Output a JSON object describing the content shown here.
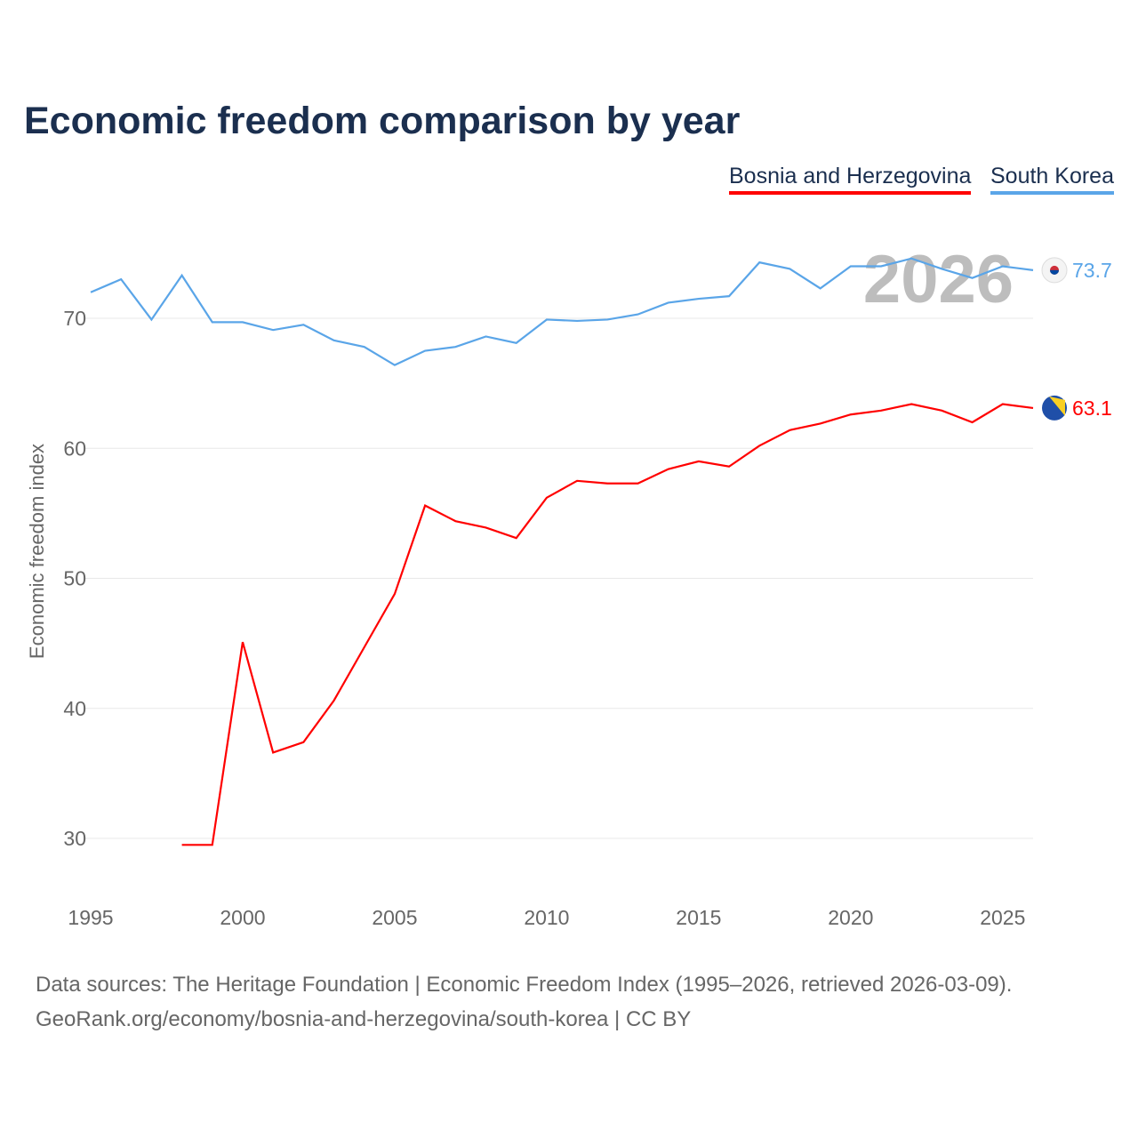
{
  "chart_data": {
    "type": "line",
    "title": "Economic freedom comparison by year",
    "ylabel": "Economic freedom index",
    "xlabel": "",
    "xlim": [
      1995,
      2026
    ],
    "ylim": [
      25.5,
      78
    ],
    "x_ticks": [
      1995,
      2000,
      2005,
      2010,
      2015,
      2020,
      2025
    ],
    "y_ticks": [
      30,
      40,
      50,
      60,
      70
    ],
    "grid": true,
    "legend_placement": "top-right",
    "year_watermark": "2026",
    "series": [
      {
        "name": "Bosnia and Herzegovina",
        "color": "#ff0000",
        "end_label": "63.1",
        "flag": "bosnia-flag",
        "x": [
          1998,
          1999,
          2000,
          2001,
          2002,
          2003,
          2004,
          2005,
          2006,
          2007,
          2008,
          2009,
          2010,
          2011,
          2012,
          2013,
          2014,
          2015,
          2016,
          2017,
          2018,
          2019,
          2020,
          2021,
          2022,
          2023,
          2024,
          2025,
          2026
        ],
        "values": [
          29.5,
          29.5,
          45.1,
          36.6,
          37.4,
          40.6,
          44.7,
          48.8,
          55.6,
          54.4,
          53.9,
          53.1,
          56.2,
          57.5,
          57.3,
          57.3,
          58.4,
          59.0,
          58.6,
          60.2,
          61.4,
          61.9,
          62.6,
          62.9,
          63.4,
          62.9,
          62.0,
          63.4,
          63.1
        ]
      },
      {
        "name": "South Korea",
        "color": "#5aa5e8",
        "end_label": "73.7",
        "flag": "south-korea-flag",
        "x": [
          1995,
          1996,
          1997,
          1998,
          1999,
          2000,
          2001,
          2002,
          2003,
          2004,
          2005,
          2006,
          2007,
          2008,
          2009,
          2010,
          2011,
          2012,
          2013,
          2014,
          2015,
          2016,
          2017,
          2018,
          2019,
          2020,
          2021,
          2022,
          2023,
          2024,
          2025,
          2026
        ],
        "values": [
          72.0,
          73.0,
          69.9,
          73.3,
          69.7,
          69.7,
          69.1,
          69.5,
          68.3,
          67.8,
          66.4,
          67.5,
          67.8,
          68.6,
          68.1,
          69.9,
          69.8,
          69.9,
          70.3,
          71.2,
          71.5,
          71.7,
          74.3,
          73.8,
          72.3,
          74.0,
          74.0,
          74.6,
          73.8,
          73.1,
          74.0,
          73.7
        ]
      }
    ]
  },
  "footer": {
    "source_line": "Data sources: The Heritage Foundation | Economic Freedom Index (1995–2026, retrieved 2026-03-09).",
    "url_line": "GeoRank.org/economy/bosnia-and-herzegovina/south-korea | CC BY"
  }
}
